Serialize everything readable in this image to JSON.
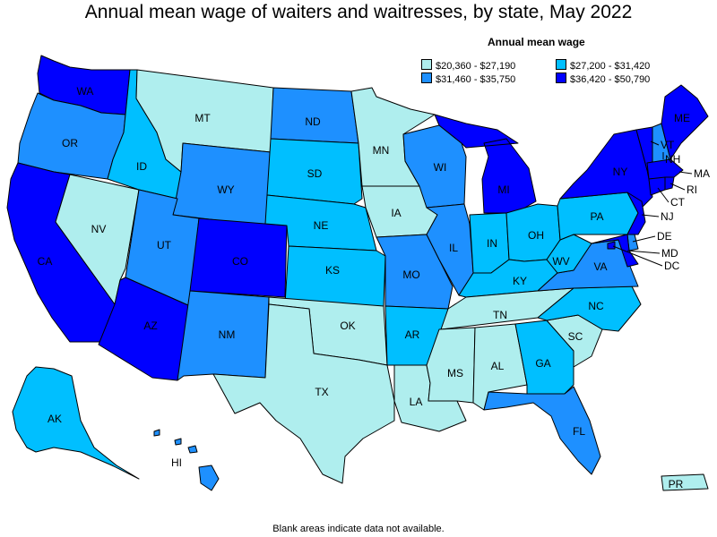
{
  "title": "Annual mean wage of waiters and waitresses, by state, May 2022",
  "legend": {
    "title": "Annual mean wage",
    "bins": [
      {
        "label": "$20,360 - $27,190",
        "color": "#afeeee"
      },
      {
        "label": "$27,200 - $31,420",
        "color": "#00bfff"
      },
      {
        "label": "$31,460 - $35,750",
        "color": "#1e90ff"
      },
      {
        "label": "$36,420 - $50,790",
        "color": "#0000ff"
      }
    ]
  },
  "note": "Blank areas indicate data not available.",
  "states": {
    "WA": {
      "label": "WA",
      "bin": 3
    },
    "OR": {
      "label": "OR",
      "bin": 2
    },
    "CA": {
      "label": "CA",
      "bin": 3
    },
    "NV": {
      "label": "NV",
      "bin": 0
    },
    "ID": {
      "label": "ID",
      "bin": 1
    },
    "MT": {
      "label": "MT",
      "bin": 0
    },
    "WY": {
      "label": "WY",
      "bin": 2
    },
    "UT": {
      "label": "UT",
      "bin": 2
    },
    "AZ": {
      "label": "AZ",
      "bin": 3
    },
    "CO": {
      "label": "CO",
      "bin": 3
    },
    "NM": {
      "label": "NM",
      "bin": 2
    },
    "ND": {
      "label": "ND",
      "bin": 2
    },
    "SD": {
      "label": "SD",
      "bin": 1
    },
    "NE": {
      "label": "NE",
      "bin": 1
    },
    "KS": {
      "label": "KS",
      "bin": 1
    },
    "OK": {
      "label": "OK",
      "bin": 0
    },
    "TX": {
      "label": "TX",
      "bin": 0
    },
    "MN": {
      "label": "MN",
      "bin": 0
    },
    "IA": {
      "label": "IA",
      "bin": 0
    },
    "MO": {
      "label": "MO",
      "bin": 2
    },
    "AR": {
      "label": "AR",
      "bin": 1
    },
    "LA": {
      "label": "LA",
      "bin": 0
    },
    "WI": {
      "label": "WI",
      "bin": 2
    },
    "IL": {
      "label": "IL",
      "bin": 2
    },
    "MI": {
      "label": "MI",
      "bin": 3
    },
    "IN": {
      "label": "IN",
      "bin": 1
    },
    "OH": {
      "label": "OH",
      "bin": 1
    },
    "KY": {
      "label": "KY",
      "bin": 1
    },
    "TN": {
      "label": "TN",
      "bin": 0
    },
    "MS": {
      "label": "MS",
      "bin": 0
    },
    "AL": {
      "label": "AL",
      "bin": 0
    },
    "GA": {
      "label": "GA",
      "bin": 1
    },
    "FL": {
      "label": "FL",
      "bin": 2
    },
    "SC": {
      "label": "SC",
      "bin": 0
    },
    "NC": {
      "label": "NC",
      "bin": 1
    },
    "VA": {
      "label": "VA",
      "bin": 2
    },
    "WV": {
      "label": "WV",
      "bin": 1
    },
    "PA": {
      "label": "PA",
      "bin": 1
    },
    "NY": {
      "label": "NY",
      "bin": 3
    },
    "VT": {
      "label": "VT",
      "bin": 3
    },
    "NH": {
      "label": "NH",
      "bin": 2
    },
    "ME": {
      "label": "ME",
      "bin": 3
    },
    "MA": {
      "label": "MA",
      "bin": 3
    },
    "RI": {
      "label": "RI",
      "bin": 3
    },
    "CT": {
      "label": "CT",
      "bin": 3
    },
    "NJ": {
      "label": "NJ",
      "bin": 3
    },
    "DE": {
      "label": "DE",
      "bin": 2
    },
    "MD": {
      "label": "MD",
      "bin": 3
    },
    "DC": {
      "label": "DC",
      "bin": 3
    },
    "AK": {
      "label": "AK",
      "bin": 1
    },
    "HI": {
      "label": "HI",
      "bin": 2
    },
    "PR": {
      "label": "PR",
      "bin": 0
    }
  }
}
